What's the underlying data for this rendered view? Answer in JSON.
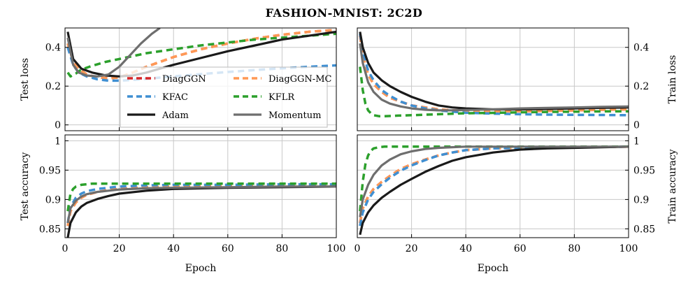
{
  "figure": {
    "title": "FASHION-MNIST: 2C2D",
    "xlabel": "Epoch"
  },
  "colors": {
    "DiagGGN": "#d62728",
    "DiagGGN-MC": "#ff9955",
    "KFAC": "#3f8fd2",
    "KFLR": "#2ca02c",
    "Adam": "#1a1a1a",
    "Momentum": "#6e6e6e"
  },
  "legend": {
    "placement": "top-left panel, lower-middle",
    "items": [
      "DiagGGN",
      "DiagGGN-MC",
      "KFAC",
      "KFLR",
      "Adam",
      "Momentum"
    ]
  },
  "chart_data": [
    {
      "id": "test-loss",
      "type": "line",
      "ylabel": "Test loss",
      "xlim": [
        0,
        100
      ],
      "ylim": [
        -0.03,
        0.5
      ],
      "yticks": [
        0,
        0.2,
        0.4
      ],
      "yticklabels": [
        "0",
        "0.2",
        "0.4"
      ],
      "xticks": [
        0,
        20,
        40,
        60,
        80,
        100
      ],
      "xticklabels": [],
      "grid": true,
      "series": [
        {
          "name": "DiagGGN",
          "x": [
            1,
            3,
            5,
            8,
            12,
            16,
            20,
            25,
            30,
            40,
            50,
            60,
            70,
            80,
            90,
            100
          ],
          "y": [
            0.42,
            0.33,
            0.29,
            0.26,
            0.245,
            0.24,
            0.245,
            0.27,
            0.3,
            0.35,
            0.39,
            0.42,
            0.445,
            0.465,
            0.48,
            0.49
          ]
        },
        {
          "name": "DiagGGN-MC",
          "x": [
            1,
            3,
            5,
            8,
            12,
            16,
            20,
            25,
            30,
            40,
            50,
            60,
            70,
            80,
            90,
            100
          ],
          "y": [
            0.42,
            0.33,
            0.29,
            0.26,
            0.245,
            0.24,
            0.245,
            0.27,
            0.3,
            0.35,
            0.39,
            0.42,
            0.445,
            0.465,
            0.48,
            0.49
          ]
        },
        {
          "name": "KFAC",
          "x": [
            1,
            3,
            5,
            8,
            12,
            16,
            20,
            25,
            30,
            40,
            50,
            60,
            70,
            80,
            90,
            100
          ],
          "y": [
            0.4,
            0.31,
            0.27,
            0.25,
            0.235,
            0.228,
            0.228,
            0.232,
            0.238,
            0.25,
            0.262,
            0.273,
            0.283,
            0.292,
            0.3,
            0.307
          ]
        },
        {
          "name": "KFLR",
          "x": [
            1,
            2,
            4,
            6,
            10,
            15,
            20,
            30,
            40,
            50,
            60,
            70,
            80,
            90,
            100
          ],
          "y": [
            0.27,
            0.25,
            0.265,
            0.285,
            0.305,
            0.325,
            0.34,
            0.37,
            0.39,
            0.41,
            0.425,
            0.44,
            0.45,
            0.46,
            0.47
          ]
        },
        {
          "name": "Adam",
          "x": [
            1,
            3,
            6,
            10,
            15,
            20,
            25,
            30,
            35,
            40,
            50,
            60,
            70,
            80,
            90,
            100
          ],
          "y": [
            0.48,
            0.34,
            0.29,
            0.27,
            0.255,
            0.25,
            0.255,
            0.27,
            0.29,
            0.31,
            0.345,
            0.38,
            0.41,
            0.44,
            0.46,
            0.48
          ]
        },
        {
          "name": "Momentum",
          "x": [
            1,
            3,
            5,
            8,
            12,
            16,
            20,
            24,
            28,
            32,
            35
          ],
          "y": [
            0.45,
            0.31,
            0.27,
            0.255,
            0.25,
            0.26,
            0.3,
            0.36,
            0.42,
            0.47,
            0.5
          ]
        }
      ]
    },
    {
      "id": "train-loss",
      "type": "line",
      "ylabel": "Train loss",
      "xlim": [
        0,
        100
      ],
      "ylim": [
        -0.03,
        0.5
      ],
      "yticks": [
        0,
        0.2,
        0.4
      ],
      "yticklabels": [
        "0",
        "0.2",
        "0.4"
      ],
      "xticks": [
        0,
        20,
        40,
        60,
        80,
        100
      ],
      "xticklabels": [],
      "grid": true,
      "series": [
        {
          "name": "DiagGGN",
          "x": [
            1,
            2,
            4,
            6,
            9,
            12,
            16,
            20,
            25,
            30,
            35,
            40,
            50,
            60,
            70,
            80,
            90,
            100
          ],
          "y": [
            0.46,
            0.36,
            0.26,
            0.21,
            0.17,
            0.14,
            0.12,
            0.1,
            0.09,
            0.08,
            0.075,
            0.072,
            0.07,
            0.07,
            0.072,
            0.075,
            0.078,
            0.08
          ]
        },
        {
          "name": "DiagGGN-MC",
          "x": [
            1,
            2,
            4,
            6,
            9,
            12,
            16,
            20,
            25,
            30,
            35,
            40,
            50,
            60,
            70,
            80,
            90,
            100
          ],
          "y": [
            0.46,
            0.36,
            0.26,
            0.21,
            0.17,
            0.14,
            0.12,
            0.1,
            0.09,
            0.08,
            0.075,
            0.072,
            0.07,
            0.07,
            0.072,
            0.075,
            0.078,
            0.08
          ]
        },
        {
          "name": "KFAC",
          "x": [
            1,
            2,
            4,
            6,
            9,
            12,
            16,
            20,
            25,
            30,
            35,
            40,
            50,
            60,
            70,
            80,
            90,
            100
          ],
          "y": [
            0.47,
            0.38,
            0.28,
            0.23,
            0.18,
            0.15,
            0.12,
            0.1,
            0.085,
            0.075,
            0.068,
            0.063,
            0.058,
            0.055,
            0.053,
            0.052,
            0.051,
            0.05
          ]
        },
        {
          "name": "KFLR",
          "x": [
            1,
            2,
            3,
            4,
            5,
            6,
            8,
            10,
            15,
            20,
            30,
            40,
            50,
            60,
            70,
            80,
            90,
            100
          ],
          "y": [
            0.3,
            0.18,
            0.11,
            0.075,
            0.06,
            0.05,
            0.045,
            0.045,
            0.048,
            0.05,
            0.055,
            0.06,
            0.062,
            0.065,
            0.067,
            0.068,
            0.07,
            0.07
          ]
        },
        {
          "name": "Adam",
          "x": [
            1,
            2,
            4,
            6,
            9,
            12,
            16,
            20,
            25,
            30,
            35,
            40,
            50,
            60,
            70,
            80,
            90,
            100
          ],
          "y": [
            0.48,
            0.4,
            0.32,
            0.27,
            0.23,
            0.2,
            0.17,
            0.145,
            0.12,
            0.1,
            0.09,
            0.085,
            0.08,
            0.08,
            0.082,
            0.085,
            0.088,
            0.09
          ]
        },
        {
          "name": "Momentum",
          "x": [
            1,
            2,
            4,
            6,
            9,
            12,
            16,
            20,
            25,
            30,
            35,
            40,
            50,
            60,
            70,
            80,
            90,
            100
          ],
          "y": [
            0.42,
            0.32,
            0.22,
            0.17,
            0.13,
            0.11,
            0.095,
            0.085,
            0.078,
            0.075,
            0.075,
            0.077,
            0.08,
            0.085,
            0.088,
            0.09,
            0.093,
            0.095
          ]
        }
      ]
    },
    {
      "id": "test-accuracy",
      "type": "line",
      "ylabel": "Test accuracy",
      "xlim": [
        0,
        100
      ],
      "ylim": [
        0.835,
        1.01
      ],
      "yticks": [
        0.85,
        0.9,
        0.95,
        1
      ],
      "yticklabels": [
        "0.85",
        "0.9",
        "0.95",
        "1"
      ],
      "xticks": [
        0,
        20,
        40,
        60,
        80,
        100
      ],
      "xticklabels": [
        "0",
        "20",
        "40",
        "60",
        "80",
        "100"
      ],
      "xlabel": "Epoch",
      "grid": true,
      "series": [
        {
          "name": "DiagGGN",
          "x": [
            1,
            2,
            4,
            6,
            8,
            12,
            16,
            20,
            30,
            40,
            60,
            80,
            100
          ],
          "y": [
            0.855,
            0.88,
            0.895,
            0.903,
            0.908,
            0.913,
            0.916,
            0.918,
            0.921,
            0.922,
            0.923,
            0.924,
            0.924
          ]
        },
        {
          "name": "DiagGGN-MC",
          "x": [
            1,
            2,
            4,
            6,
            8,
            12,
            16,
            20,
            30,
            40,
            60,
            80,
            100
          ],
          "y": [
            0.855,
            0.88,
            0.895,
            0.903,
            0.908,
            0.913,
            0.916,
            0.918,
            0.921,
            0.922,
            0.923,
            0.924,
            0.924
          ]
        },
        {
          "name": "KFAC",
          "x": [
            1,
            2,
            4,
            6,
            8,
            12,
            16,
            20,
            30,
            40,
            60,
            80,
            100
          ],
          "y": [
            0.86,
            0.887,
            0.903,
            0.91,
            0.914,
            0.918,
            0.92,
            0.922,
            0.924,
            0.925,
            0.925,
            0.926,
            0.926
          ]
        },
        {
          "name": "KFLR",
          "x": [
            1,
            2,
            3,
            4,
            6,
            8,
            10,
            15,
            20,
            40,
            60,
            80,
            100
          ],
          "y": [
            0.88,
            0.91,
            0.918,
            0.922,
            0.925,
            0.926,
            0.927,
            0.927,
            0.927,
            0.927,
            0.927,
            0.927,
            0.927
          ]
        },
        {
          "name": "Adam",
          "x": [
            1,
            2,
            4,
            6,
            8,
            12,
            16,
            20,
            30,
            40,
            60,
            80,
            100
          ],
          "y": [
            0.835,
            0.86,
            0.878,
            0.888,
            0.894,
            0.901,
            0.906,
            0.91,
            0.915,
            0.918,
            0.92,
            0.921,
            0.922
          ]
        },
        {
          "name": "Momentum",
          "x": [
            1,
            2,
            4,
            6,
            8,
            12,
            16,
            20,
            30,
            40,
            60,
            80,
            100
          ],
          "y": [
            0.86,
            0.885,
            0.898,
            0.905,
            0.909,
            0.913,
            0.915,
            0.917,
            0.919,
            0.92,
            0.921,
            0.922,
            0.922
          ]
        }
      ]
    },
    {
      "id": "train-accuracy",
      "type": "line",
      "ylabel": "Train accuracy",
      "xlim": [
        0,
        100
      ],
      "ylim": [
        0.835,
        1.01
      ],
      "yticks": [
        0.85,
        0.9,
        0.95,
        1
      ],
      "yticklabels": [
        "0.85",
        "0.9",
        "0.95",
        "1"
      ],
      "xticks": [
        0,
        20,
        40,
        60,
        80,
        100
      ],
      "xticklabels": [
        "0",
        "20",
        "40",
        "60",
        "80",
        "100"
      ],
      "xlabel": "Epoch",
      "grid": true,
      "series": [
        {
          "name": "DiagGGN",
          "x": [
            1,
            2,
            4,
            6,
            9,
            12,
            16,
            20,
            25,
            30,
            35,
            40,
            50,
            60,
            80,
            100
          ],
          "y": [
            0.86,
            0.885,
            0.905,
            0.918,
            0.93,
            0.94,
            0.952,
            0.96,
            0.968,
            0.975,
            0.98,
            0.984,
            0.987,
            0.988,
            0.989,
            0.99
          ]
        },
        {
          "name": "DiagGGN-MC",
          "x": [
            1,
            2,
            4,
            6,
            9,
            12,
            16,
            20,
            25,
            30,
            35,
            40,
            50,
            60,
            80,
            100
          ],
          "y": [
            0.86,
            0.885,
            0.905,
            0.918,
            0.93,
            0.94,
            0.952,
            0.96,
            0.968,
            0.975,
            0.98,
            0.984,
            0.987,
            0.988,
            0.989,
            0.99
          ]
        },
        {
          "name": "KFAC",
          "x": [
            1,
            2,
            4,
            6,
            9,
            12,
            16,
            20,
            25,
            30,
            35,
            40,
            50,
            60,
            80,
            100
          ],
          "y": [
            0.855,
            0.878,
            0.9,
            0.913,
            0.926,
            0.937,
            0.949,
            0.958,
            0.967,
            0.975,
            0.98,
            0.984,
            0.987,
            0.988,
            0.989,
            0.99
          ]
        },
        {
          "name": "KFLR",
          "x": [
            1,
            2,
            3,
            4,
            5,
            6,
            8,
            10,
            15,
            20,
            40,
            60,
            80,
            100
          ],
          "y": [
            0.88,
            0.93,
            0.96,
            0.975,
            0.983,
            0.987,
            0.989,
            0.99,
            0.99,
            0.99,
            0.99,
            0.99,
            0.99,
            0.99
          ]
        },
        {
          "name": "Adam",
          "x": [
            1,
            2,
            4,
            6,
            9,
            12,
            16,
            20,
            25,
            30,
            35,
            40,
            50,
            60,
            70,
            80,
            90,
            100
          ],
          "y": [
            0.84,
            0.86,
            0.878,
            0.89,
            0.903,
            0.913,
            0.925,
            0.935,
            0.947,
            0.957,
            0.966,
            0.972,
            0.98,
            0.985,
            0.987,
            0.988,
            0.989,
            0.99
          ]
        },
        {
          "name": "Momentum",
          "x": [
            1,
            2,
            4,
            6,
            9,
            12,
            16,
            20,
            25,
            30,
            35,
            40,
            50,
            60,
            80,
            100
          ],
          "y": [
            0.87,
            0.9,
            0.925,
            0.942,
            0.958,
            0.968,
            0.977,
            0.982,
            0.986,
            0.988,
            0.989,
            0.99,
            0.99,
            0.99,
            0.99,
            0.99
          ]
        }
      ]
    }
  ]
}
